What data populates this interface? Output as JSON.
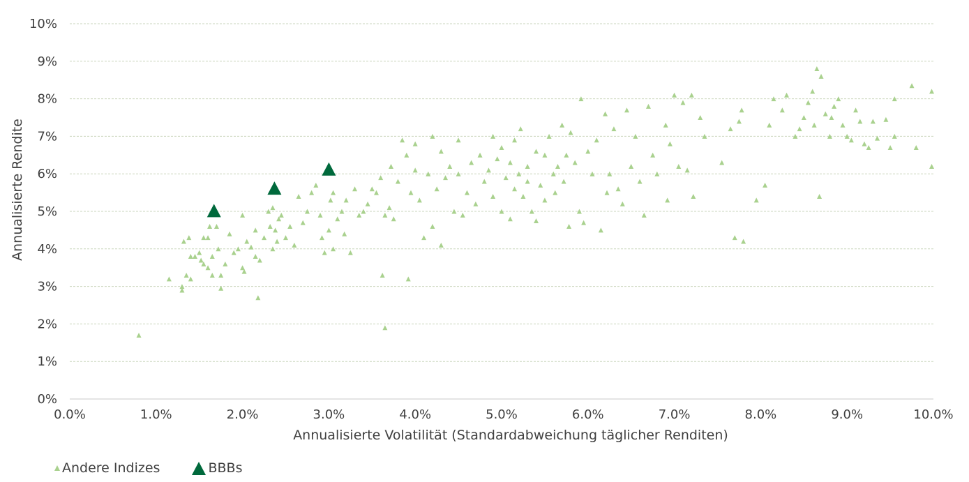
{
  "colors": {
    "others": "#a9d18e",
    "bbb": "#00693c",
    "grid": "#c9d5bc",
    "text": "#404040"
  },
  "legend": {
    "others_label": "Andere Indizes",
    "bbb_label": "BBBs"
  },
  "chart_data": {
    "type": "scatter",
    "title": "",
    "xlabel": "Annualisierte Volatilität (Standardabweichung täglicher Renditen)",
    "ylabel": "Annualisierte Rendite",
    "xlim": [
      0,
      10
    ],
    "ylim": [
      0,
      10
    ],
    "x_ticks": [
      "0.0%",
      "1.0%",
      "2.0%",
      "3.0%",
      "4.0%",
      "5.0%",
      "6.0%",
      "7.0%",
      "8.0%",
      "9.0%",
      "10.0%"
    ],
    "y_ticks": [
      "0%",
      "1%",
      "2%",
      "3%",
      "4%",
      "5%",
      "6%",
      "7%",
      "8%",
      "9%",
      "10%"
    ],
    "grid": "horizontal dashed",
    "legend_position": "bottom-left",
    "series": [
      {
        "name": "Andere Indizes",
        "points": [
          [
            0.8,
            1.7
          ],
          [
            1.15,
            3.2
          ],
          [
            1.3,
            2.9
          ],
          [
            1.3,
            3.0
          ],
          [
            1.35,
            3.3
          ],
          [
            1.4,
            3.2
          ],
          [
            1.32,
            4.2
          ],
          [
            1.38,
            4.3
          ],
          [
            1.4,
            3.8
          ],
          [
            1.45,
            3.8
          ],
          [
            1.5,
            3.9
          ],
          [
            1.52,
            3.7
          ],
          [
            1.55,
            4.3
          ],
          [
            1.55,
            3.6
          ],
          [
            1.6,
            4.3
          ],
          [
            1.6,
            3.5
          ],
          [
            1.62,
            4.6
          ],
          [
            1.65,
            3.3
          ],
          [
            1.65,
            3.8
          ],
          [
            1.7,
            4.6
          ],
          [
            1.72,
            4.0
          ],
          [
            1.75,
            2.95
          ],
          [
            1.75,
            3.3
          ],
          [
            1.8,
            3.6
          ],
          [
            1.85,
            4.4
          ],
          [
            1.9,
            3.9
          ],
          [
            1.95,
            4.0
          ],
          [
            2.0,
            4.9
          ],
          [
            2.0,
            3.5
          ],
          [
            2.02,
            3.4
          ],
          [
            2.05,
            4.2
          ],
          [
            2.1,
            4.05
          ],
          [
            2.15,
            3.8
          ],
          [
            2.15,
            4.5
          ],
          [
            2.2,
            3.7
          ],
          [
            2.18,
            2.7
          ],
          [
            2.25,
            4.3
          ],
          [
            2.3,
            5.0
          ],
          [
            2.32,
            4.6
          ],
          [
            2.35,
            4.0
          ],
          [
            2.35,
            5.1
          ],
          [
            2.38,
            4.5
          ],
          [
            2.4,
            4.2
          ],
          [
            2.42,
            4.8
          ],
          [
            2.45,
            4.9
          ],
          [
            2.5,
            4.3
          ],
          [
            2.55,
            4.6
          ],
          [
            2.6,
            4.1
          ],
          [
            2.65,
            5.4
          ],
          [
            2.7,
            4.7
          ],
          [
            2.75,
            5.0
          ],
          [
            2.8,
            5.5
          ],
          [
            2.85,
            5.7
          ],
          [
            2.9,
            4.9
          ],
          [
            2.92,
            4.3
          ],
          [
            2.95,
            3.9
          ],
          [
            3.0,
            4.5
          ],
          [
            3.02,
            5.3
          ],
          [
            3.05,
            4.0
          ],
          [
            3.05,
            5.5
          ],
          [
            3.1,
            4.8
          ],
          [
            3.15,
            5.0
          ],
          [
            3.18,
            4.4
          ],
          [
            3.2,
            5.3
          ],
          [
            3.25,
            3.9
          ],
          [
            3.3,
            5.6
          ],
          [
            3.35,
            4.9
          ],
          [
            3.4,
            5.0
          ],
          [
            3.45,
            5.2
          ],
          [
            3.5,
            5.6
          ],
          [
            3.55,
            5.5
          ],
          [
            3.6,
            5.9
          ],
          [
            3.62,
            3.3
          ],
          [
            3.65,
            1.9
          ],
          [
            3.65,
            4.9
          ],
          [
            3.7,
            5.1
          ],
          [
            3.72,
            6.2
          ],
          [
            3.75,
            4.8
          ],
          [
            3.8,
            5.8
          ],
          [
            3.85,
            6.9
          ],
          [
            3.9,
            6.5
          ],
          [
            3.92,
            3.2
          ],
          [
            3.95,
            5.5
          ],
          [
            4.0,
            6.1
          ],
          [
            4.0,
            6.8
          ],
          [
            4.05,
            5.3
          ],
          [
            4.1,
            4.3
          ],
          [
            4.15,
            6.0
          ],
          [
            4.2,
            7.0
          ],
          [
            4.2,
            4.6
          ],
          [
            4.25,
            5.6
          ],
          [
            4.3,
            4.1
          ],
          [
            4.3,
            6.6
          ],
          [
            4.35,
            5.9
          ],
          [
            4.4,
            6.2
          ],
          [
            4.45,
            5.0
          ],
          [
            4.5,
            6.0
          ],
          [
            4.5,
            6.9
          ],
          [
            4.55,
            4.9
          ],
          [
            4.6,
            5.5
          ],
          [
            4.65,
            6.3
          ],
          [
            4.7,
            5.2
          ],
          [
            4.75,
            6.5
          ],
          [
            4.8,
            5.8
          ],
          [
            4.85,
            6.1
          ],
          [
            4.9,
            7.0
          ],
          [
            4.9,
            5.4
          ],
          [
            4.95,
            6.4
          ],
          [
            5.0,
            5.0
          ],
          [
            5.0,
            6.7
          ],
          [
            5.05,
            5.9
          ],
          [
            5.1,
            4.8
          ],
          [
            5.1,
            6.3
          ],
          [
            5.15,
            5.6
          ],
          [
            5.15,
            6.9
          ],
          [
            5.2,
            6.0
          ],
          [
            5.22,
            7.2
          ],
          [
            5.25,
            5.4
          ],
          [
            5.3,
            6.2
          ],
          [
            5.3,
            5.8
          ],
          [
            5.35,
            5.0
          ],
          [
            5.4,
            6.6
          ],
          [
            5.4,
            4.75
          ],
          [
            5.45,
            5.7
          ],
          [
            5.5,
            6.5
          ],
          [
            5.5,
            5.3
          ],
          [
            5.55,
            7.0
          ],
          [
            5.6,
            6.0
          ],
          [
            5.62,
            5.5
          ],
          [
            5.65,
            6.2
          ],
          [
            5.7,
            7.3
          ],
          [
            5.72,
            5.8
          ],
          [
            5.75,
            6.5
          ],
          [
            5.78,
            4.6
          ],
          [
            5.8,
            7.1
          ],
          [
            5.85,
            6.3
          ],
          [
            5.9,
            5.0
          ],
          [
            5.92,
            8.0
          ],
          [
            5.95,
            4.7
          ],
          [
            6.0,
            6.6
          ],
          [
            6.05,
            6.0
          ],
          [
            6.1,
            6.9
          ],
          [
            6.15,
            4.5
          ],
          [
            6.2,
            7.6
          ],
          [
            6.22,
            5.5
          ],
          [
            6.25,
            6.0
          ],
          [
            6.3,
            7.2
          ],
          [
            6.35,
            5.6
          ],
          [
            6.4,
            5.2
          ],
          [
            6.45,
            7.7
          ],
          [
            6.5,
            6.2
          ],
          [
            6.55,
            7.0
          ],
          [
            6.6,
            5.8
          ],
          [
            6.65,
            4.9
          ],
          [
            6.7,
            7.8
          ],
          [
            6.75,
            6.5
          ],
          [
            6.8,
            6.0
          ],
          [
            6.9,
            7.3
          ],
          [
            6.92,
            5.3
          ],
          [
            6.95,
            6.8
          ],
          [
            7.0,
            8.1
          ],
          [
            7.05,
            6.2
          ],
          [
            7.1,
            7.9
          ],
          [
            7.15,
            6.1
          ],
          [
            7.2,
            8.1
          ],
          [
            7.22,
            5.4
          ],
          [
            7.3,
            7.5
          ],
          [
            7.35,
            7.0
          ],
          [
            7.55,
            6.3
          ],
          [
            7.65,
            7.2
          ],
          [
            7.7,
            4.3
          ],
          [
            7.75,
            7.4
          ],
          [
            7.78,
            7.7
          ],
          [
            7.8,
            4.2
          ],
          [
            7.95,
            5.3
          ],
          [
            8.05,
            5.7
          ],
          [
            8.1,
            7.3
          ],
          [
            8.15,
            8.0
          ],
          [
            8.25,
            7.7
          ],
          [
            8.3,
            8.1
          ],
          [
            8.4,
            7.0
          ],
          [
            8.45,
            7.2
          ],
          [
            8.5,
            7.5
          ],
          [
            8.55,
            7.9
          ],
          [
            8.6,
            8.2
          ],
          [
            8.62,
            7.3
          ],
          [
            8.65,
            8.8
          ],
          [
            8.68,
            5.4
          ],
          [
            8.7,
            8.6
          ],
          [
            8.75,
            7.6
          ],
          [
            8.8,
            7.0
          ],
          [
            8.82,
            7.5
          ],
          [
            8.85,
            7.8
          ],
          [
            8.9,
            8.0
          ],
          [
            8.95,
            7.3
          ],
          [
            9.0,
            7.0
          ],
          [
            9.05,
            6.9
          ],
          [
            9.1,
            7.7
          ],
          [
            9.15,
            7.4
          ],
          [
            9.2,
            6.8
          ],
          [
            9.25,
            6.7
          ],
          [
            9.3,
            7.4
          ],
          [
            9.35,
            6.95
          ],
          [
            9.45,
            7.45
          ],
          [
            9.5,
            6.7
          ],
          [
            9.55,
            8.0
          ],
          [
            9.55,
            7.0
          ],
          [
            9.75,
            8.35
          ],
          [
            9.8,
            6.7
          ],
          [
            9.98,
            6.2
          ],
          [
            9.98,
            8.2
          ]
        ]
      },
      {
        "name": "BBBs",
        "points": [
          [
            1.67,
            5.02
          ],
          [
            2.37,
            5.62
          ],
          [
            3.0,
            6.13
          ]
        ]
      }
    ]
  }
}
